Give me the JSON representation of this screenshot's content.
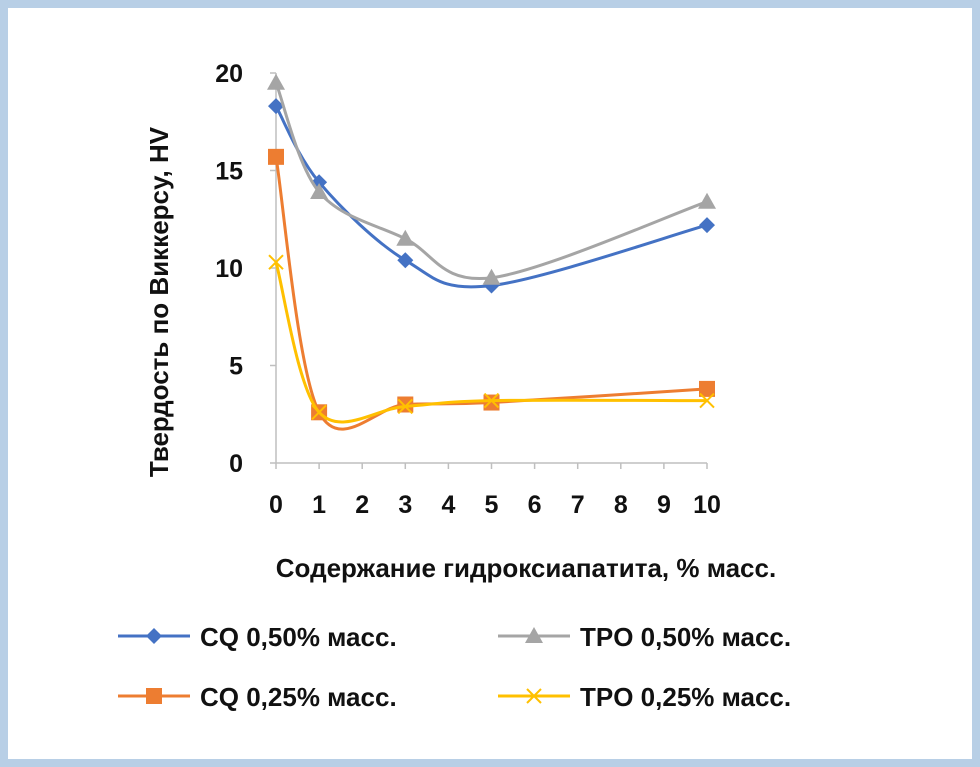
{
  "chart_data": {
    "type": "line",
    "title": "",
    "xlabel": "Содержание гидроксиапатита, % масс.",
    "ylabel": "Твердость по Виккерсу, HV",
    "x_ticks": [
      "0",
      "1",
      "2",
      "3",
      "4",
      "5",
      "6",
      "7",
      "8",
      "9",
      "10"
    ],
    "xlim": [
      0,
      10
    ],
    "ylim": [
      0,
      20
    ],
    "y_ticks": [
      "0",
      "5",
      "10",
      "15",
      "20"
    ],
    "grid": false,
    "legend_position": "bottom",
    "series": [
      {
        "name": "CQ 0,50% масс.",
        "color": "#4472c4",
        "marker": "diamond",
        "x": [
          0,
          1,
          3,
          5,
          10
        ],
        "values": [
          18.3,
          14.4,
          10.4,
          9.1,
          12.2
        ]
      },
      {
        "name": "TPO 0,50% масс.",
        "color": "#a5a5a5",
        "marker": "triangle",
        "x": [
          0,
          1,
          3,
          5,
          10
        ],
        "values": [
          19.5,
          13.9,
          11.5,
          9.5,
          13.4
        ]
      },
      {
        "name": "CQ 0,25% масс.",
        "color": "#ed7d31",
        "marker": "square",
        "x": [
          0,
          1,
          3,
          5,
          10
        ],
        "values": [
          15.7,
          2.6,
          3.0,
          3.1,
          3.8
        ]
      },
      {
        "name": "TPO 0,25% масс.",
        "color": "#ffc000",
        "marker": "x",
        "x": [
          0,
          1,
          3,
          5,
          10
        ],
        "values": [
          10.3,
          2.6,
          2.9,
          3.2,
          3.2
        ]
      }
    ]
  }
}
